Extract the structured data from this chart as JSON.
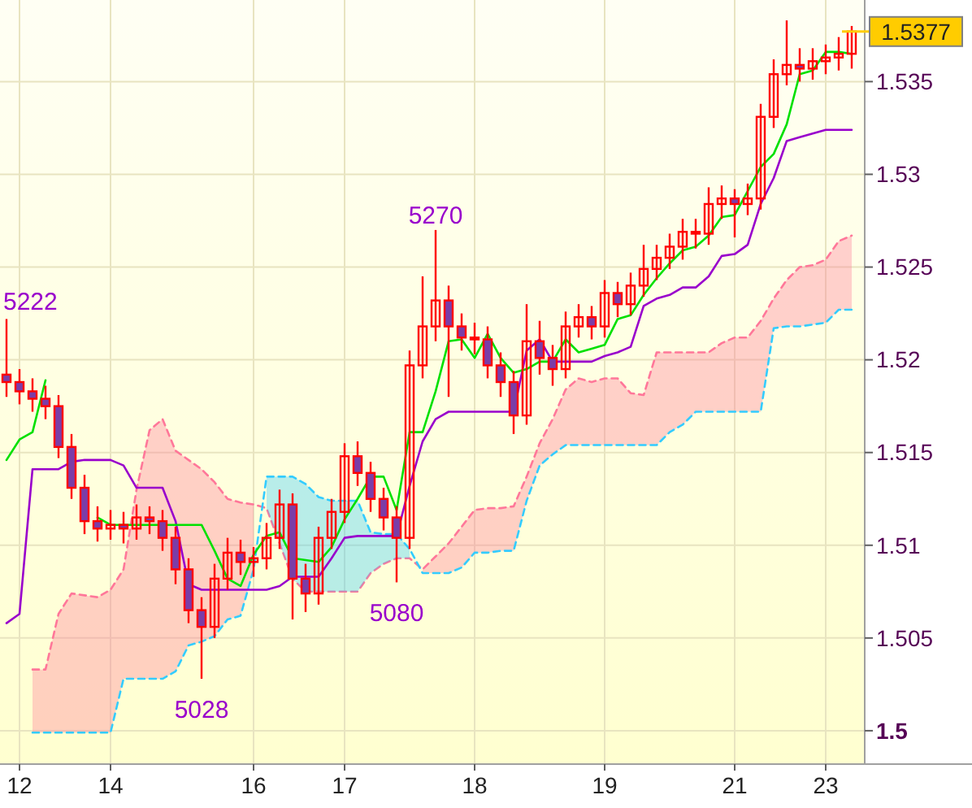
{
  "chart_data": {
    "type": "candlestick",
    "ylim": [
      1.4982,
      1.5394
    ],
    "categories": [
      null,
      "12",
      null,
      null,
      null,
      null,
      null,
      null,
      "14",
      null,
      null,
      null,
      null,
      null,
      null,
      null,
      null,
      null,
      null,
      "16",
      null,
      null,
      null,
      null,
      null,
      null,
      "17",
      null,
      null,
      null,
      null,
      null,
      null,
      null,
      null,
      null,
      "18",
      null,
      null,
      null,
      null,
      null,
      null,
      null,
      null,
      null,
      "19",
      null,
      null,
      null,
      null,
      null,
      null,
      null,
      null,
      null,
      "21",
      null,
      null,
      null,
      null,
      null,
      null,
      "23",
      null,
      null
    ],
    "yticks": [
      {
        "value": 1.5,
        "label": "1.5"
      },
      1.505,
      1.51,
      1.515,
      1.52,
      1.525,
      1.53,
      1.535
    ],
    "grid": true,
    "ref_lines": [
      {
        "axis": "y",
        "value": 1.5377,
        "label": "1.5377",
        "color": "#ffcc00"
      }
    ],
    "annotations": [
      "5222",
      {
        "text": "5270",
        "y": 1.527
      },
      {
        "text": "5080",
        "y": 1.508
      },
      {
        "text": "5028",
        "y": 1.5028
      }
    ],
    "series": [
      {
        "type": "line",
        "color": "#ff7799",
        "line_style": "dashed",
        "values": [
          null,
          null,
          1.5033,
          1.5033,
          1.5063,
          1.5074,
          1.5073,
          1.5072,
          1.5076,
          1.5087,
          1.513,
          1.5162,
          1.5168,
          1.5151,
          1.5146,
          1.5141,
          1.5134,
          1.5125,
          1.5123,
          1.5122,
          1.512,
          1.5101,
          1.5082,
          1.5075,
          1.5075,
          1.5075,
          1.5075,
          1.5075,
          1.5085,
          1.509,
          1.5093,
          1.5093,
          1.5087,
          1.5094,
          1.5101,
          1.511,
          1.5119,
          1.512,
          1.512,
          1.5121,
          1.5137,
          1.5155,
          1.5168,
          1.5184,
          1.519,
          1.5188,
          1.519,
          1.519,
          1.5182,
          1.5181,
          1.5204,
          1.5204,
          1.5204,
          1.5204,
          1.5204,
          1.5209,
          1.5212,
          1.5212,
          1.5221,
          1.5233,
          1.5243,
          1.525,
          1.5251,
          1.5254,
          1.5264,
          1.5267
        ],
        "upper": [
          null,
          null,
          1.5033,
          1.5033,
          1.5063,
          1.5074,
          1.5073,
          1.5072,
          1.5076,
          1.5087,
          1.513,
          1.5162,
          1.5168,
          1.5151,
          1.5146,
          1.5141,
          1.5134,
          1.5125,
          1.5123,
          1.5122,
          null,
          null,
          null,
          null,
          null,
          null,
          null,
          null,
          null,
          null,
          null,
          null,
          1.5087,
          1.5094,
          1.5101,
          1.511,
          1.5119,
          1.512,
          1.512,
          1.5121,
          1.5137,
          1.5155,
          1.5168,
          1.5184,
          1.519,
          1.5188,
          1.519,
          1.519,
          1.5182,
          1.5181,
          1.5204,
          1.5204,
          1.5204,
          1.5204,
          1.5204,
          1.5209,
          1.5212,
          1.5212,
          1.5221,
          1.5233,
          1.5243,
          1.525,
          1.5251,
          1.5254,
          1.5264,
          1.5267
        ],
        "lower": [
          null,
          null,
          1.4999,
          1.4999,
          1.4999,
          1.4999,
          1.4999,
          1.4999,
          1.4999,
          1.5028,
          1.5028,
          1.5028,
          1.5028,
          1.5032,
          1.5046,
          1.5048,
          1.5051,
          1.506,
          1.5062,
          1.5087,
          null,
          null,
          null,
          null,
          null,
          null,
          null,
          null,
          null,
          null,
          null,
          null,
          1.5085,
          1.5085,
          1.5085,
          1.5088,
          1.5096,
          1.5096,
          1.5097,
          1.5097,
          1.5124,
          1.5143,
          1.5149,
          1.5154,
          1.5154,
          1.5154,
          1.5154,
          1.5154,
          1.5154,
          1.5154,
          1.5154,
          1.5161,
          1.5165,
          1.5172,
          1.5172,
          1.5172,
          1.5172,
          1.5172,
          1.5172,
          1.5217,
          1.5218,
          1.5218,
          1.5219,
          1.522,
          1.5227,
          1.5227
        ]
      },
      {
        "type": "line",
        "color": "#33ccff",
        "line_style": "dashed",
        "values": [
          null,
          null,
          1.4999,
          1.4999,
          1.4999,
          1.4999,
          1.4999,
          1.4999,
          1.4999,
          1.5028,
          1.5028,
          1.5028,
          1.5028,
          1.5032,
          1.5046,
          1.5048,
          1.5051,
          1.506,
          1.5062,
          1.5087,
          1.5137,
          1.5137,
          1.5137,
          1.5133,
          1.5126,
          1.5124,
          1.5124,
          1.5124,
          1.5107,
          1.5106,
          1.5106,
          1.5098,
          1.5085,
          1.5085,
          1.5085,
          1.5088,
          1.5096,
          1.5096,
          1.5097,
          1.5097,
          1.5124,
          1.5143,
          1.5149,
          1.5154,
          1.5154,
          1.5154,
          1.5154,
          1.5154,
          1.5154,
          1.5154,
          1.5154,
          1.5161,
          1.5165,
          1.5172,
          1.5172,
          1.5172,
          1.5172,
          1.5172,
          1.5172,
          1.5217,
          1.5218,
          1.5218,
          1.5219,
          1.522,
          1.5227,
          1.5227
        ],
        "upper": [
          null,
          null,
          null,
          null,
          null,
          null,
          null,
          null,
          null,
          null,
          null,
          null,
          null,
          null,
          null,
          null,
          null,
          null,
          null,
          null,
          1.5137,
          1.5137,
          1.5137,
          1.5133,
          1.5126,
          1.5124,
          1.5124,
          1.5124,
          1.5107,
          1.5106,
          1.5106,
          1.5098,
          null,
          null,
          null,
          null,
          null,
          null,
          null,
          null,
          null,
          null,
          null,
          null,
          null,
          null,
          null,
          null,
          null,
          null,
          null,
          null,
          null,
          null,
          null,
          null,
          null,
          null,
          null,
          null,
          null,
          null,
          null,
          null,
          null,
          null
        ],
        "lower": [
          null,
          null,
          null,
          null,
          null,
          null,
          null,
          null,
          null,
          null,
          null,
          null,
          null,
          null,
          null,
          null,
          null,
          null,
          null,
          null,
          1.512,
          1.5101,
          1.5082,
          1.5075,
          1.5075,
          1.5075,
          1.5075,
          1.5075,
          1.5085,
          1.509,
          1.5093,
          1.5093,
          null,
          null,
          null,
          null,
          null,
          null,
          null,
          null,
          null,
          null,
          null,
          null,
          null,
          null,
          null,
          null,
          null,
          null,
          null,
          null,
          null,
          null,
          null,
          null,
          null,
          null,
          null,
          null,
          null,
          null,
          null,
          null,
          null,
          null
        ]
      },
      {
        "type": "line",
        "color": "#9900cc",
        "values": [
          1.5058,
          1.5063,
          1.5141,
          1.5141,
          1.5141,
          1.5145,
          1.5146,
          1.5146,
          1.5146,
          1.5143,
          1.5131,
          1.5131,
          1.5131,
          1.5113,
          1.5079,
          1.5076,
          1.5076,
          1.5076,
          1.5076,
          1.5076,
          1.5076,
          1.5078,
          1.5083,
          1.5083,
          1.5083,
          1.5093,
          1.5104,
          1.5105,
          1.5105,
          1.5105,
          1.5105,
          1.5132,
          1.5156,
          1.5168,
          1.5172,
          1.5172,
          1.5172,
          1.5172,
          1.5172,
          1.5172,
          1.5205,
          1.5211,
          1.5199,
          1.5199,
          1.5199,
          1.5199,
          1.5202,
          1.5204,
          1.5207,
          1.5229,
          1.5233,
          1.5235,
          1.5239,
          1.5239,
          1.5245,
          1.5256,
          1.5257,
          1.5262,
          1.5284,
          1.5298,
          1.5318,
          1.532,
          1.5322,
          1.5324,
          1.5324,
          1.5324
        ]
      },
      {
        "type": "line",
        "color": "#00e000",
        "values": [
          1.5146,
          1.5157,
          1.5161,
          1.5189,
          null,
          null,
          null,
          1.5115,
          1.5111,
          1.5111,
          1.5111,
          1.5111,
          1.5111,
          1.5111,
          1.5111,
          1.5111,
          1.5097,
          1.5082,
          1.5078,
          1.5095,
          1.5105,
          1.5107,
          1.5093,
          1.5092,
          1.5091,
          1.5099,
          1.5114,
          1.5125,
          1.5137,
          1.5137,
          1.5119,
          1.5161,
          1.5161,
          1.5183,
          1.521,
          1.5211,
          1.5201,
          1.5214,
          1.5201,
          1.5193,
          1.5195,
          1.5199,
          1.5199,
          1.5211,
          1.5204,
          1.5206,
          1.5208,
          1.5222,
          1.5224,
          1.5235,
          1.5244,
          1.5252,
          1.5259,
          1.5261,
          1.5267,
          1.5277,
          1.5278,
          1.5291,
          1.5304,
          1.5311,
          1.5327,
          1.5354,
          1.5356,
          1.5366,
          1.5366,
          1.5365
        ]
      },
      {
        "color": "#ff0000",
        "ohlc": [
          [
            1.5192,
            1.5222,
            1.518,
            1.5188
          ],
          [
            1.5188,
            1.5195,
            1.5176,
            1.5183
          ],
          [
            1.5183,
            1.519,
            1.5172,
            1.5179
          ],
          [
            1.5179,
            1.5186,
            1.5168,
            1.5175
          ],
          [
            1.5175,
            1.5181,
            1.5147,
            1.5153
          ],
          [
            1.5153,
            1.516,
            1.5125,
            1.5131
          ],
          [
            1.5131,
            1.5138,
            1.5106,
            1.5113
          ],
          [
            1.5113,
            1.5121,
            1.5102,
            1.5109
          ],
          [
            1.5109,
            1.5119,
            1.5103,
            1.5111
          ],
          [
            1.5111,
            1.5118,
            1.5101,
            1.5109
          ],
          [
            1.5109,
            1.5122,
            1.5103,
            1.5115
          ],
          [
            1.5115,
            1.5121,
            1.5106,
            1.5113
          ],
          [
            1.5113,
            1.5119,
            1.5097,
            1.5104
          ],
          [
            1.5104,
            1.511,
            1.5079,
            1.5087
          ],
          [
            1.5087,
            1.5093,
            1.5058,
            1.5065
          ],
          [
            1.5065,
            1.5072,
            1.5028,
            1.5056
          ],
          [
            1.5056,
            1.509,
            1.505,
            1.5082
          ],
          [
            1.5082,
            1.5104,
            1.5076,
            1.5096
          ],
          [
            1.5096,
            1.5103,
            1.5084,
            1.5091
          ],
          [
            1.5091,
            1.5099,
            1.5083,
            1.5093
          ],
          [
            1.5093,
            1.5112,
            1.5087,
            1.5104
          ],
          [
            1.5104,
            1.513,
            1.5098,
            1.5122
          ],
          [
            1.5122,
            1.5128,
            1.506,
            1.5082
          ],
          [
            1.5082,
            1.509,
            1.5064,
            1.5074
          ],
          [
            1.5074,
            1.511,
            1.5068,
            1.5104
          ],
          [
            1.5104,
            1.5125,
            1.5098,
            1.5118
          ],
          [
            1.5118,
            1.5155,
            1.5112,
            1.5148
          ],
          [
            1.5148,
            1.5156,
            1.5132,
            1.5139
          ],
          [
            1.5139,
            1.5145,
            1.5118,
            1.5125
          ],
          [
            1.5125,
            1.5131,
            1.5108,
            1.5115
          ],
          [
            1.5115,
            1.5121,
            1.508,
            1.5104
          ],
          [
            1.5104,
            1.5205,
            1.5098,
            1.5197
          ],
          [
            1.5197,
            1.5245,
            1.519,
            1.5218
          ],
          [
            1.5218,
            1.527,
            1.521,
            1.5232
          ],
          [
            1.5232,
            1.524,
            1.518,
            1.5218
          ],
          [
            1.5218,
            1.5225,
            1.5205,
            1.5212
          ],
          [
            1.5212,
            1.522,
            1.5203,
            1.5211
          ],
          [
            1.5211,
            1.5218,
            1.519,
            1.5197
          ],
          [
            1.5197,
            1.5204,
            1.518,
            1.5188
          ],
          [
            1.5188,
            1.5194,
            1.516,
            1.517
          ],
          [
            1.517,
            1.523,
            1.5165,
            1.521
          ],
          [
            1.521,
            1.5221,
            1.5192,
            1.5201
          ],
          [
            1.5201,
            1.5208,
            1.5186,
            1.5195
          ],
          [
            1.5195,
            1.5226,
            1.519,
            1.5218
          ],
          [
            1.5218,
            1.523,
            1.5212,
            1.5223
          ],
          [
            1.5223,
            1.5229,
            1.5211,
            1.5218
          ],
          [
            1.5218,
            1.5243,
            1.5212,
            1.5236
          ],
          [
            1.5236,
            1.5242,
            1.5223,
            1.523
          ],
          [
            1.523,
            1.5247,
            1.5224,
            1.524
          ],
          [
            1.524,
            1.5262,
            1.5234,
            1.5249
          ],
          [
            1.5249,
            1.5262,
            1.5243,
            1.5255
          ],
          [
            1.5255,
            1.5268,
            1.5249,
            1.5261
          ],
          [
            1.5261,
            1.5276,
            1.5254,
            1.5269
          ],
          [
            1.5269,
            1.5276,
            1.526,
            1.5268
          ],
          [
            1.5268,
            1.5293,
            1.5262,
            1.5284
          ],
          [
            1.5284,
            1.5294,
            1.5276,
            1.5287
          ],
          [
            1.5287,
            1.5292,
            1.5266,
            1.5284
          ],
          [
            1.5284,
            1.5295,
            1.5278,
            1.5287
          ],
          [
            1.5287,
            1.5338,
            1.5281,
            1.5331
          ],
          [
            1.5331,
            1.5362,
            1.5325,
            1.5354
          ],
          [
            1.5354,
            1.5383,
            1.5348,
            1.5359
          ],
          [
            1.5359,
            1.5368,
            1.535,
            1.5357
          ],
          [
            1.5357,
            1.5368,
            1.5351,
            1.5361
          ],
          [
            1.5361,
            1.537,
            1.5354,
            1.5363
          ],
          [
            1.5363,
            1.5374,
            1.5356,
            1.5365
          ],
          [
            1.5365,
            1.538,
            1.5357,
            1.5377
          ]
        ]
      }
    ]
  }
}
